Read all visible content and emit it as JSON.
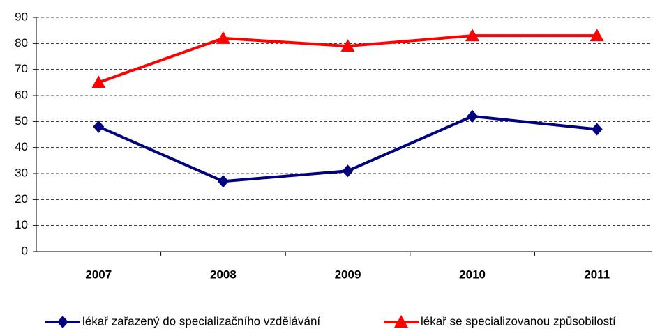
{
  "chart_data": {
    "type": "line",
    "categories": [
      "2007",
      "2008",
      "2009",
      "2010",
      "2011"
    ],
    "series": [
      {
        "name": "lékař zařazený do specializačního vzdělávání",
        "color": "#000080",
        "marker": "diamond",
        "values": [
          48,
          27,
          31,
          52,
          47
        ]
      },
      {
        "name": "lékař se specializovanou způsobilostí",
        "color": "#ff0000",
        "marker": "triangle",
        "values": [
          65,
          82,
          79,
          83,
          83
        ]
      }
    ],
    "ylim": [
      0,
      90
    ],
    "yticks": [
      0,
      10,
      20,
      30,
      40,
      50,
      60,
      70,
      80,
      90
    ],
    "grid": true,
    "legend": "bottom"
  }
}
